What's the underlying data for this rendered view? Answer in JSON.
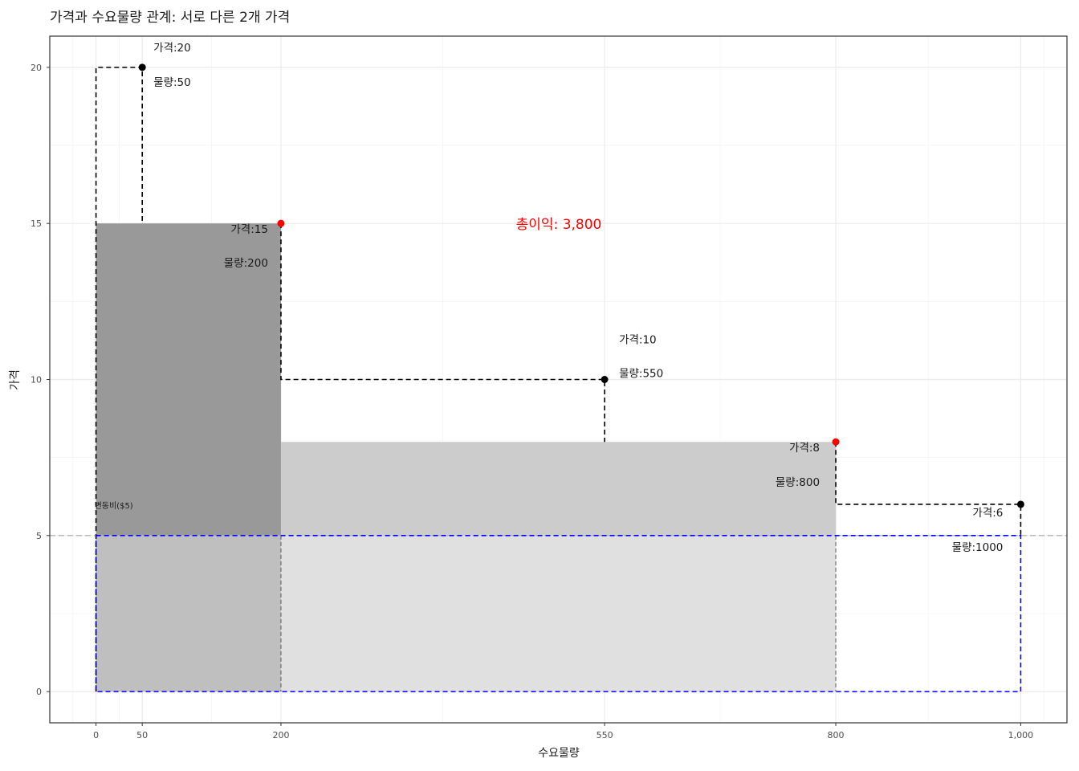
{
  "chart_data": {
    "type": "scatter",
    "title": "가격과 수요물량 관계: 서로 다른 2개 가격",
    "xlabel": "수요물량",
    "ylabel": "가격",
    "xlim": [
      -50,
      1050
    ],
    "ylim": [
      -1,
      21
    ],
    "x_ticks": [
      0,
      50,
      200,
      550,
      800,
      1000
    ],
    "x_tick_labels": [
      "0",
      "50",
      "200",
      "550",
      "800",
      "1,000"
    ],
    "y_ticks": [
      0,
      5,
      10,
      15,
      20
    ],
    "y_tick_labels": [
      "0",
      "5",
      "10",
      "15",
      "20"
    ],
    "grid": true,
    "points": [
      {
        "x": 50,
        "y": 20,
        "price_label": "가격:20",
        "qty_label": "물량:50",
        "highlight": false
      },
      {
        "x": 200,
        "y": 15,
        "price_label": "가격:15",
        "qty_label": "물량:200",
        "highlight": true
      },
      {
        "x": 550,
        "y": 10,
        "price_label": "가격:10",
        "qty_label": "물량:550",
        "highlight": false
      },
      {
        "x": 800,
        "y": 8,
        "price_label": "가격:8",
        "qty_label": "물량:800",
        "highlight": true
      },
      {
        "x": 1000,
        "y": 6,
        "price_label": "가격:6",
        "qty_label": "물량:1000",
        "highlight": false
      }
    ],
    "variable_cost": 5,
    "variable_cost_label": "변동비($5)",
    "total_profit_label": "총이익: 3,800",
    "colors": {
      "rect_dark": "#999999",
      "rect_mid": "#cccccc",
      "rect_light_left": "#bfbfbf",
      "rect_light_right": "#e0e0e0",
      "highlight_point": "#ff0000",
      "point": "#000000",
      "cost_line": "#0000ff",
      "ref_line": "#b3b3b3"
    }
  }
}
